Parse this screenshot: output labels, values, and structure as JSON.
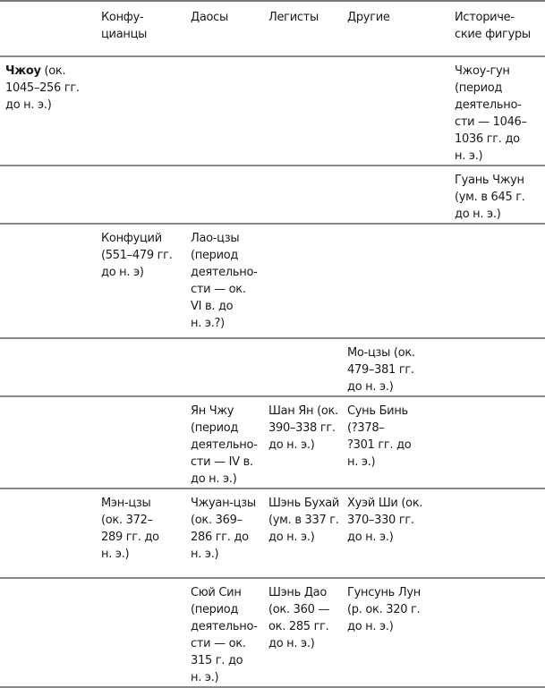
{
  "headers": [
    "",
    "Конфу-\nцианцы",
    "Даосы",
    "Легисты",
    "Другие",
    "Историче-\nские фигуры"
  ],
  "rows": [
    {
      "period_bold": "Чжоу",
      "period_rest": " (ок.\n1045–256 гг.\nдо н. э.)",
      "cells": [
        "",
        "",
        "",
        "",
        "Чжоу-гун\n(период\nдеятельно-\nсти — 1046–\n1036 гг. до\nн. э.)"
      ]
    },
    {
      "period_bold": "",
      "period_rest": "",
      "cells": [
        "",
        "",
        "",
        "",
        "Гуань Чжун\n(ум. в 645 г.\nдо н. э.)"
      ]
    },
    {
      "period_bold": "",
      "period_rest": "",
      "cells": [
        "Конфуций\n(551–479 гг.\nдо н. э)",
        "Лао-цзы\n(период\nдеятельно-\nсти — ок.\nVI в. до\nн. э.?)",
        "",
        "",
        ""
      ]
    },
    {
      "period_bold": "",
      "period_rest": "",
      "cells": [
        "",
        "",
        "",
        "Мо-цзы (ок.\n479–381 гг.\nдо н. э.)",
        ""
      ]
    },
    {
      "period_bold": "",
      "period_rest": "",
      "cells": [
        "",
        "Ян Чжу\n(период\nдеятельно-\nсти — IV в.\nдо н. э.)",
        "Шан Ян (ок.\n390–338 гг.\nдо н. э.)",
        "Сунь Бинь\n(?378–\n?301 гг. до\nн. э.)",
        ""
      ]
    },
    {
      "period_bold": "",
      "period_rest": "",
      "cells": [
        "Мэн-цзы\n(ок. 372–\n289 гг. до\nн. э.)",
        "Чжуан-цзы\n(ок. 369–\n286 гг. до\nн. э.)",
        "Шэнь Бухай\n(ум. в 337 г.\nдо н. э.)",
        "Хуэй Ши (ок.\n370–330 гг.\nдо н. э.)",
        ""
      ]
    },
    {
      "period_bold": "",
      "period_rest": "",
      "cells": [
        "",
        "Сюй Син\n(период\nдеятельно-\nсти — ок.\n315 г. до\nн. э.)",
        "Шэнь Дао\n(ок. 360 —\nок. 285 гг.\nдо н. э.)",
        "Гунсунь Лун\n(р. ок. 320 г.\nдо н. э.)",
        ""
      ]
    }
  ]
}
